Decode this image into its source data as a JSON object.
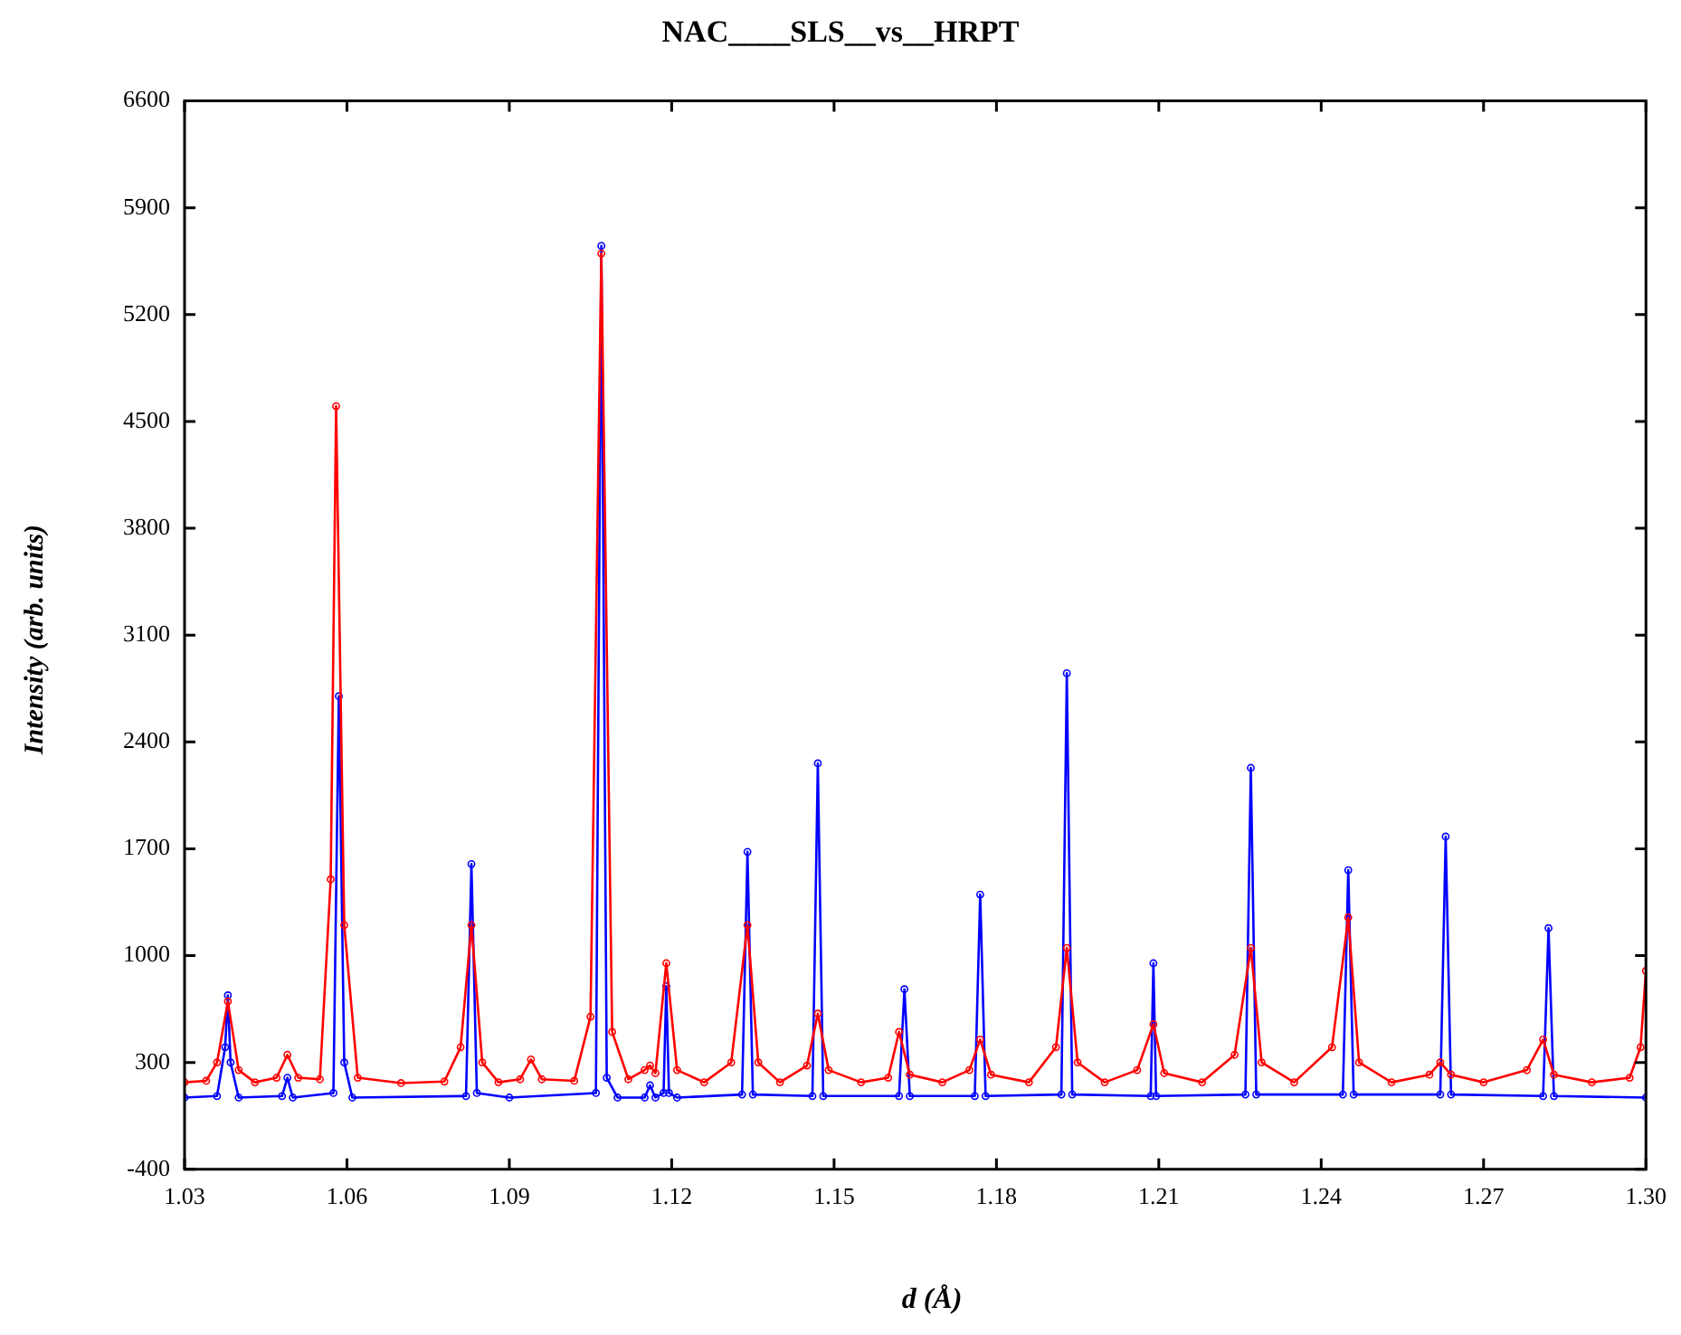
{
  "chart_data": {
    "type": "line",
    "title": "NAC____SLS__vs__HRPT",
    "xlabel": "d (Å)",
    "ylabel": "Intensity (arb. units)",
    "xlim": [
      1.03,
      1.3
    ],
    "xticks": [
      {
        "value": 1.03,
        "label": "1.03"
      },
      {
        "value": 1.06,
        "label": "1.06"
      },
      {
        "value": 1.09,
        "label": "1.09"
      },
      {
        "value": 1.12,
        "label": "1.12"
      },
      {
        "value": 1.15,
        "label": "1.15"
      },
      {
        "value": 1.18,
        "label": "1.18"
      },
      {
        "value": 1.21,
        "label": "1.21"
      },
      {
        "value": 1.24,
        "label": "1.24"
      },
      {
        "value": 1.27,
        "label": "1.27"
      },
      {
        "value": 1.3,
        "label": "1.30"
      }
    ],
    "ylim": [
      -400,
      6600
    ],
    "yticks": [
      -400,
      300,
      1000,
      1700,
      2400,
      3100,
      3800,
      4500,
      5200,
      5900,
      6600
    ],
    "grid": false,
    "legend": false,
    "marker": "circle",
    "line_style": "solid",
    "series": [
      {
        "color": "#ff0000",
        "x": [
          1.03,
          1.034,
          1.036,
          1.038,
          1.04,
          1.043,
          1.047,
          1.049,
          1.051,
          1.055,
          1.057,
          1.058,
          1.0595,
          1.062,
          1.07,
          1.078,
          1.081,
          1.083,
          1.085,
          1.088,
          1.092,
          1.094,
          1.096,
          1.102,
          1.105,
          1.107,
          1.109,
          1.112,
          1.115,
          1.116,
          1.117,
          1.119,
          1.121,
          1.126,
          1.131,
          1.134,
          1.136,
          1.14,
          1.145,
          1.147,
          1.149,
          1.155,
          1.16,
          1.162,
          1.164,
          1.17,
          1.175,
          1.177,
          1.179,
          1.186,
          1.191,
          1.193,
          1.195,
          1.2,
          1.206,
          1.209,
          1.211,
          1.218,
          1.224,
          1.227,
          1.229,
          1.235,
          1.242,
          1.245,
          1.247,
          1.253,
          1.26,
          1.262,
          1.264,
          1.27,
          1.278,
          1.281,
          1.283,
          1.29,
          1.297,
          1.299,
          1.3
        ],
        "values": [
          170,
          180,
          300,
          700,
          250,
          170,
          200,
          350,
          200,
          190,
          1500,
          4600,
          1200,
          200,
          165,
          175,
          400,
          1200,
          300,
          170,
          190,
          320,
          190,
          180,
          600,
          5600,
          500,
          190,
          250,
          280,
          230,
          950,
          250,
          170,
          300,
          1200,
          300,
          170,
          280,
          620,
          250,
          170,
          200,
          500,
          220,
          170,
          250,
          450,
          220,
          170,
          400,
          1050,
          300,
          170,
          250,
          550,
          230,
          170,
          350,
          1050,
          300,
          170,
          400,
          1250,
          300,
          170,
          220,
          300,
          220,
          170,
          250,
          450,
          220,
          170,
          200,
          400,
          900
        ]
      },
      {
        "color": "#0000ff",
        "x": [
          1.03,
          1.036,
          1.0375,
          1.038,
          1.0385,
          1.04,
          1.048,
          1.049,
          1.05,
          1.0575,
          1.0585,
          1.0595,
          1.061,
          1.082,
          1.083,
          1.084,
          1.09,
          1.106,
          1.107,
          1.108,
          1.11,
          1.115,
          1.116,
          1.117,
          1.1185,
          1.119,
          1.1195,
          1.121,
          1.133,
          1.134,
          1.135,
          1.146,
          1.147,
          1.148,
          1.162,
          1.163,
          1.164,
          1.176,
          1.177,
          1.178,
          1.192,
          1.193,
          1.194,
          1.2085,
          1.209,
          1.2095,
          1.226,
          1.227,
          1.228,
          1.244,
          1.245,
          1.246,
          1.262,
          1.263,
          1.264,
          1.281,
          1.282,
          1.283,
          1.3
        ],
        "values": [
          70,
          80,
          400,
          740,
          300,
          70,
          80,
          200,
          70,
          100,
          2700,
          300,
          70,
          80,
          1600,
          100,
          70,
          100,
          5650,
          200,
          70,
          70,
          150,
          70,
          100,
          800,
          100,
          70,
          90,
          1680,
          90,
          80,
          2260,
          80,
          80,
          780,
          80,
          80,
          1400,
          80,
          90,
          2850,
          90,
          80,
          950,
          80,
          90,
          2230,
          90,
          90,
          1560,
          90,
          90,
          1780,
          90,
          80,
          1180,
          80,
          70
        ]
      }
    ]
  }
}
